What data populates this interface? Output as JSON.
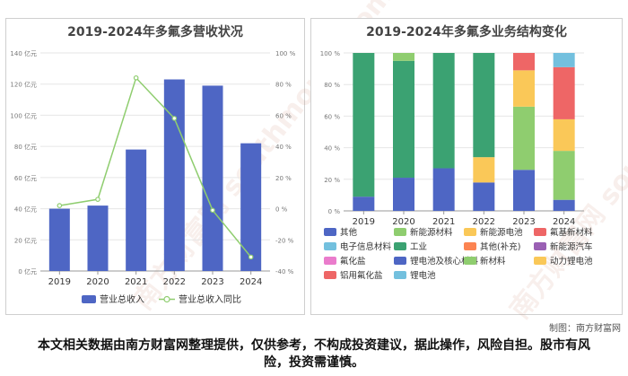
{
  "left_chart_title": "2019-2024年多氟多营收状况",
  "right_chart_title": "2019-2024年多氟多业务结构变化",
  "credit": "制图：南方财富网",
  "disclaimer": "本文相关数据由南方财富网整理提供，仅供参考，不构成投资建议，据此操作，风险自担。股市有风险，投资需谨慎。",
  "watermark": "南方财富网 southmoney.com",
  "colors": {
    "bar": "#4e66c4",
    "line": "#8fcd6f",
    "other": "#4e66c4",
    "new_energy_material": "#8fcd6f",
    "new_energy_battery": "#fac858",
    "fluoro_material": "#ee6666",
    "electronic_material": "#73c0de",
    "industry": "#3ba272",
    "other_supp": "#fc8452",
    "new_energy_vehicle": "#9a60b4",
    "fluorosalt": "#ea7ccc"
  },
  "chart_data": [
    {
      "type": "bar+line",
      "title": "2019-2024年多氟多营收状况",
      "categories": [
        "2019",
        "2020",
        "2021",
        "2022",
        "2023",
        "2024"
      ],
      "series": [
        {
          "name": "营业总收入",
          "type": "bar",
          "axis": "left",
          "values": [
            40,
            42,
            78,
            123,
            119,
            82
          ]
        },
        {
          "name": "营业总收入同比",
          "type": "line",
          "axis": "right",
          "values": [
            2,
            6,
            84,
            58,
            -1,
            -31
          ]
        }
      ],
      "y_left": {
        "ticks": [
          0,
          20,
          40,
          60,
          80,
          100,
          120,
          140
        ],
        "labels": [
          "0 亿元",
          "20 亿元",
          "40 亿元",
          "60 亿元",
          "80 亿元",
          "100 亿元",
          "120 亿元",
          "140 亿元"
        ],
        "min": 0,
        "max": 140
      },
      "y_right": {
        "ticks": [
          -40,
          -20,
          0,
          20,
          40,
          60,
          80,
          100
        ],
        "labels": [
          "-40 %",
          "-20 %",
          "0 %",
          "20 %",
          "40 %",
          "60 %",
          "80 %",
          "100 %"
        ],
        "min": -40,
        "max": 100
      },
      "legend": [
        "营业总收入",
        "营业总收入同比"
      ],
      "legend_position": "bottom"
    },
    {
      "type": "stacked-bar-percent",
      "title": "2019-2024年多氟多业务结构变化",
      "categories": [
        "2019",
        "2020",
        "2021",
        "2022",
        "2023",
        "2024"
      ],
      "series": [
        {
          "name": "其他",
          "values": [
            9,
            21,
            27,
            18,
            26,
            7
          ]
        },
        {
          "name": "新能源材料",
          "values": [
            0,
            0,
            0,
            0,
            40,
            31
          ]
        },
        {
          "name": "新能源电池",
          "values": [
            0,
            0,
            0,
            16,
            23,
            20
          ]
        },
        {
          "name": "氟基新材料",
          "values": [
            0,
            0,
            0,
            0,
            11,
            33
          ]
        },
        {
          "name": "电子信息材料",
          "values": [
            0,
            0,
            0,
            0,
            0,
            9
          ]
        },
        {
          "name": "工业",
          "values": [
            91,
            74,
            73,
            66,
            0,
            0
          ]
        },
        {
          "name": "其他(补充)",
          "values": [
            0,
            0,
            0,
            0,
            0,
            0
          ]
        },
        {
          "name": "新能源汽车",
          "values": [
            0,
            0,
            0,
            0,
            0,
            0
          ]
        },
        {
          "name": "氟化盐",
          "values": [
            0,
            0,
            0,
            0,
            0,
            0
          ]
        },
        {
          "name": "锂电池及核心材料",
          "values": [
            0,
            0,
            0,
            0,
            0,
            0
          ]
        },
        {
          "name": "新材料",
          "values": [
            0,
            5,
            0,
            0,
            0,
            0
          ]
        },
        {
          "name": "动力锂电池",
          "values": [
            0,
            0,
            0,
            0,
            0,
            0
          ]
        },
        {
          "name": "铝用氟化盐",
          "values": [
            0,
            0,
            0,
            0,
            0,
            0
          ]
        },
        {
          "name": "锂电池",
          "values": [
            0,
            0,
            0,
            0,
            0,
            0
          ]
        }
      ],
      "y_axis": {
        "ticks": [
          0,
          20,
          40,
          60,
          80,
          100
        ],
        "labels": [
          "0 %",
          "20 %",
          "40 %",
          "60 %",
          "80 %",
          "100 %"
        ],
        "min": 0,
        "max": 100
      },
      "legend": [
        "其他",
        "新能源材料",
        "新能源电池",
        "氟基新材料",
        "电子信息材料",
        "工业",
        "其他(补充)",
        "新能源汽车",
        "氟化盐",
        "锂电池及核心材料",
        "新材料",
        "动力锂电池",
        "铝用氟化盐",
        "锂电池"
      ],
      "legend_position": "bottom"
    }
  ]
}
